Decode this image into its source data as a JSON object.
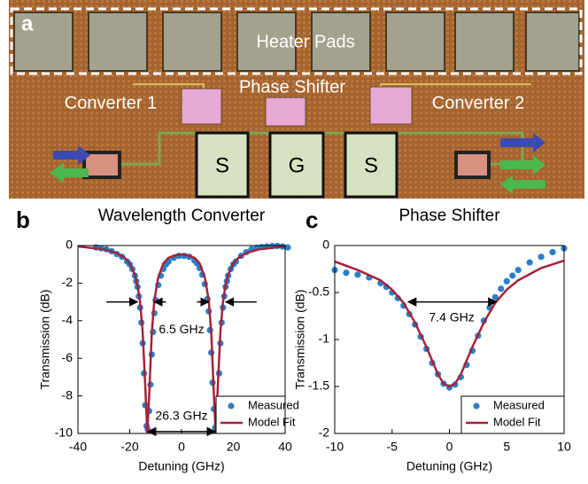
{
  "panels": {
    "a": "a",
    "b": "b",
    "c": "c"
  },
  "image_labels": {
    "heater_pads": "Heater Pads",
    "phase_shifter": "Phase Shifter",
    "converter_1": "Converter 1",
    "converter_2": "Converter 2",
    "pads": [
      "S",
      "G",
      "S"
    ]
  },
  "chart_data": [
    {
      "type": "line",
      "title": "Wavelength Converter",
      "xlabel": "Detuning (GHz)",
      "ylabel": "Transmission (dB)",
      "xlim": [
        -40,
        40
      ],
      "ylim": [
        -10,
        0
      ],
      "xticks": [
        -40,
        -20,
        0,
        20,
        40
      ],
      "yticks": [
        0,
        -2,
        -4,
        -6,
        -8,
        -10
      ],
      "legend": "lower right",
      "annotations": [
        "6.5 GHz",
        "26.3 GHz"
      ],
      "series": [
        {
          "name": "Measured",
          "color": "#2b7fcb",
          "marker": "dot",
          "x": [
            -33,
            -31,
            -29,
            -27,
            -25,
            -23,
            -21,
            -20,
            -19,
            -18,
            -17.5,
            -17,
            -16.5,
            -16,
            -15.5,
            -15,
            -14.5,
            -14,
            -13.5,
            -13,
            -12.5,
            -12,
            -11.5,
            -11,
            -10.5,
            -10,
            -9,
            -8,
            -7,
            -6,
            -5,
            -3,
            -1,
            1,
            3,
            5,
            6,
            7,
            8,
            9,
            10,
            10.5,
            11,
            11.5,
            12,
            12.5,
            13,
            13.5,
            14,
            14.5,
            15,
            15.5,
            16,
            16.5,
            17,
            17.5,
            18,
            19,
            20,
            21,
            23,
            25,
            27,
            29,
            31,
            33,
            35,
            37,
            39,
            41
          ],
          "values": [
            -0.1,
            -0.15,
            -0.2,
            -0.3,
            -0.45,
            -0.6,
            -0.85,
            -1.0,
            -1.25,
            -1.6,
            -1.9,
            -2.2,
            -2.7,
            -3.3,
            -4.1,
            -5.2,
            -6.8,
            -8.5,
            -9.6,
            -9.8,
            -8.8,
            -7.4,
            -5.8,
            -4.6,
            -3.6,
            -2.9,
            -2.1,
            -1.6,
            -1.25,
            -1.0,
            -0.85,
            -0.65,
            -0.55,
            -0.55,
            -0.6,
            -0.8,
            -0.95,
            -1.2,
            -1.55,
            -2.05,
            -2.85,
            -3.5,
            -4.5,
            -5.7,
            -7.3,
            -8.7,
            -9.7,
            -9.6,
            -8.5,
            -6.8,
            -5.2,
            -4.1,
            -3.3,
            -2.7,
            -2.2,
            -1.9,
            -1.6,
            -1.25,
            -1.0,
            -0.85,
            -0.55,
            -0.35,
            -0.2,
            -0.12,
            -0.08,
            -0.05,
            -0.03,
            -0.02,
            -0.05,
            -0.1
          ]
        },
        {
          "name": "Model Fit",
          "color": "#a5233a",
          "marker": "line",
          "x": [
            -40,
            -30,
            -25,
            -22,
            -20,
            -18,
            -17,
            -16,
            -15,
            -14,
            -13.2,
            -12.5,
            -11.5,
            -10.5,
            -9,
            -7,
            -5,
            -2,
            0,
            2,
            5,
            7,
            9,
            10.5,
            11.5,
            12.5,
            13.2,
            14,
            15,
            16,
            17,
            18,
            20,
            22,
            25,
            30,
            40
          ],
          "values": [
            -0.05,
            -0.2,
            -0.4,
            -0.65,
            -0.95,
            -1.55,
            -2.1,
            -3.0,
            -4.6,
            -7.5,
            -10,
            -8.0,
            -4.7,
            -2.9,
            -1.7,
            -0.95,
            -0.65,
            -0.5,
            -0.48,
            -0.5,
            -0.65,
            -0.95,
            -1.7,
            -2.9,
            -4.7,
            -8.0,
            -10,
            -7.5,
            -4.6,
            -3.0,
            -2.1,
            -1.55,
            -0.95,
            -0.65,
            -0.4,
            -0.2,
            -0.05
          ]
        }
      ]
    },
    {
      "type": "line",
      "title": "Phase Shifter",
      "xlabel": "Detuning (GHz)",
      "ylabel": "Transmission (dB)",
      "xlim": [
        -10,
        10
      ],
      "ylim": [
        -2,
        0
      ],
      "xticks": [
        -10,
        -5,
        0,
        5,
        10
      ],
      "yticks": [
        0,
        -0.5,
        -1,
        -1.5,
        -2
      ],
      "legend": "lower right",
      "annotations": [
        "7.4 GHz"
      ],
      "series": [
        {
          "name": "Measured",
          "color": "#2b7fcb",
          "marker": "dot",
          "x": [
            -10,
            -9,
            -8,
            -7,
            -6,
            -5.5,
            -5,
            -4.5,
            -4,
            -3.5,
            -3,
            -2.5,
            -2,
            -1.5,
            -1,
            -0.5,
            0,
            0.5,
            1,
            1.5,
            2,
            2.5,
            3,
            3.5,
            4,
            4.5,
            5,
            5.5,
            6,
            7,
            8,
            9,
            10
          ],
          "values": [
            -0.26,
            -0.29,
            -0.31,
            -0.34,
            -0.4,
            -0.44,
            -0.5,
            -0.56,
            -0.64,
            -0.73,
            -0.84,
            -0.97,
            -1.1,
            -1.25,
            -1.37,
            -1.47,
            -1.51,
            -1.48,
            -1.4,
            -1.27,
            -1.12,
            -0.96,
            -0.8,
            -0.66,
            -0.55,
            -0.46,
            -0.38,
            -0.32,
            -0.26,
            -0.18,
            -0.12,
            -0.07,
            -0.03
          ]
        },
        {
          "name": "Model Fit",
          "color": "#a5233a",
          "marker": "line",
          "x": [
            -10,
            -8,
            -6,
            -5,
            -4,
            -3,
            -2,
            -1,
            -0.5,
            0,
            0.5,
            1,
            2,
            3,
            4,
            5,
            6,
            8,
            10
          ],
          "values": [
            -0.17,
            -0.26,
            -0.37,
            -0.47,
            -0.61,
            -0.82,
            -1.08,
            -1.37,
            -1.47,
            -1.5,
            -1.47,
            -1.37,
            -1.08,
            -0.82,
            -0.61,
            -0.47,
            -0.37,
            -0.24,
            -0.16
          ]
        }
      ]
    }
  ]
}
